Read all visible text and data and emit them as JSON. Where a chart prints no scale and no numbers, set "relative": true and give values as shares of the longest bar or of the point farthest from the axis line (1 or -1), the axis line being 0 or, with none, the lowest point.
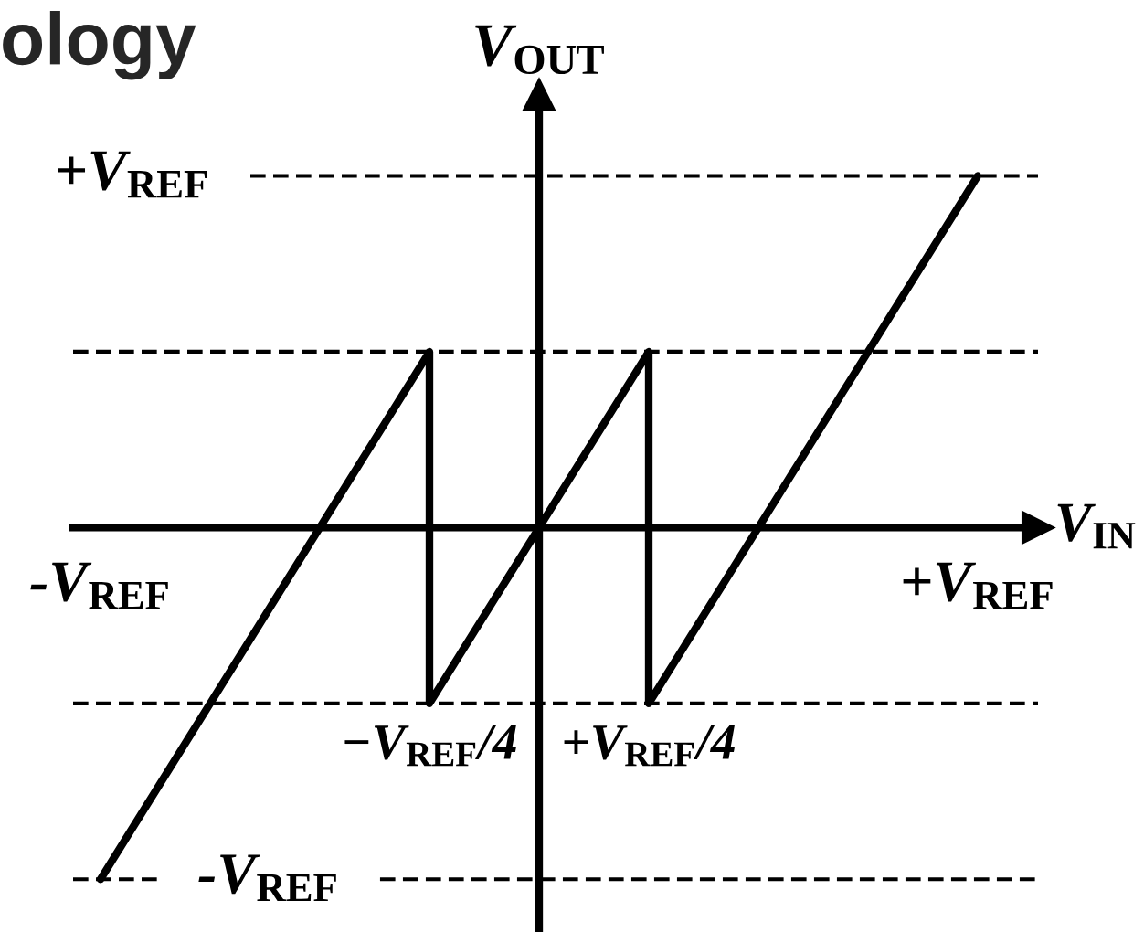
{
  "chart_data": {
    "type": "line",
    "relative": true,
    "title": "ology",
    "xlabel": "V$_{IN}$",
    "ylabel": "V$_{OUT}$",
    "categories": [
      "-V$_{REF}$",
      null,
      null,
      "−V$_{REF}$/4",
      null,
      "+V$_{REF}$/4",
      null,
      null,
      "+V$_{REF}$"
    ],
    "series": [
      {
        "color": "#000000",
        "x": [
          "-V$_{REF}$",
          "−V$_{REF}$/4",
          "−V$_{REF}$/4",
          "+V$_{REF}$/4",
          "+V$_{REF}$/4",
          "+V$_{REF}$"
        ],
        "values": [
          -1,
          0.5,
          -0.5,
          0.5,
          -0.5,
          1
        ]
      }
    ],
    "ref_lines": [
      {
        "axis": "y",
        "value": 1,
        "label": "+V$_{REF}$",
        "color": "#000000",
        "line_style": "dashed"
      },
      {
        "axis": "y",
        "value": 0.5,
        "color": "#000000",
        "line_style": "dashed"
      },
      {
        "axis": "y",
        "value": -0.5,
        "color": "#000000",
        "line_style": "dashed"
      },
      {
        "axis": "y",
        "value": -1,
        "label": "-V$_{REF}$",
        "color": "#000000",
        "line_style": "dashed"
      }
    ],
    "line_style": "solid"
  }
}
